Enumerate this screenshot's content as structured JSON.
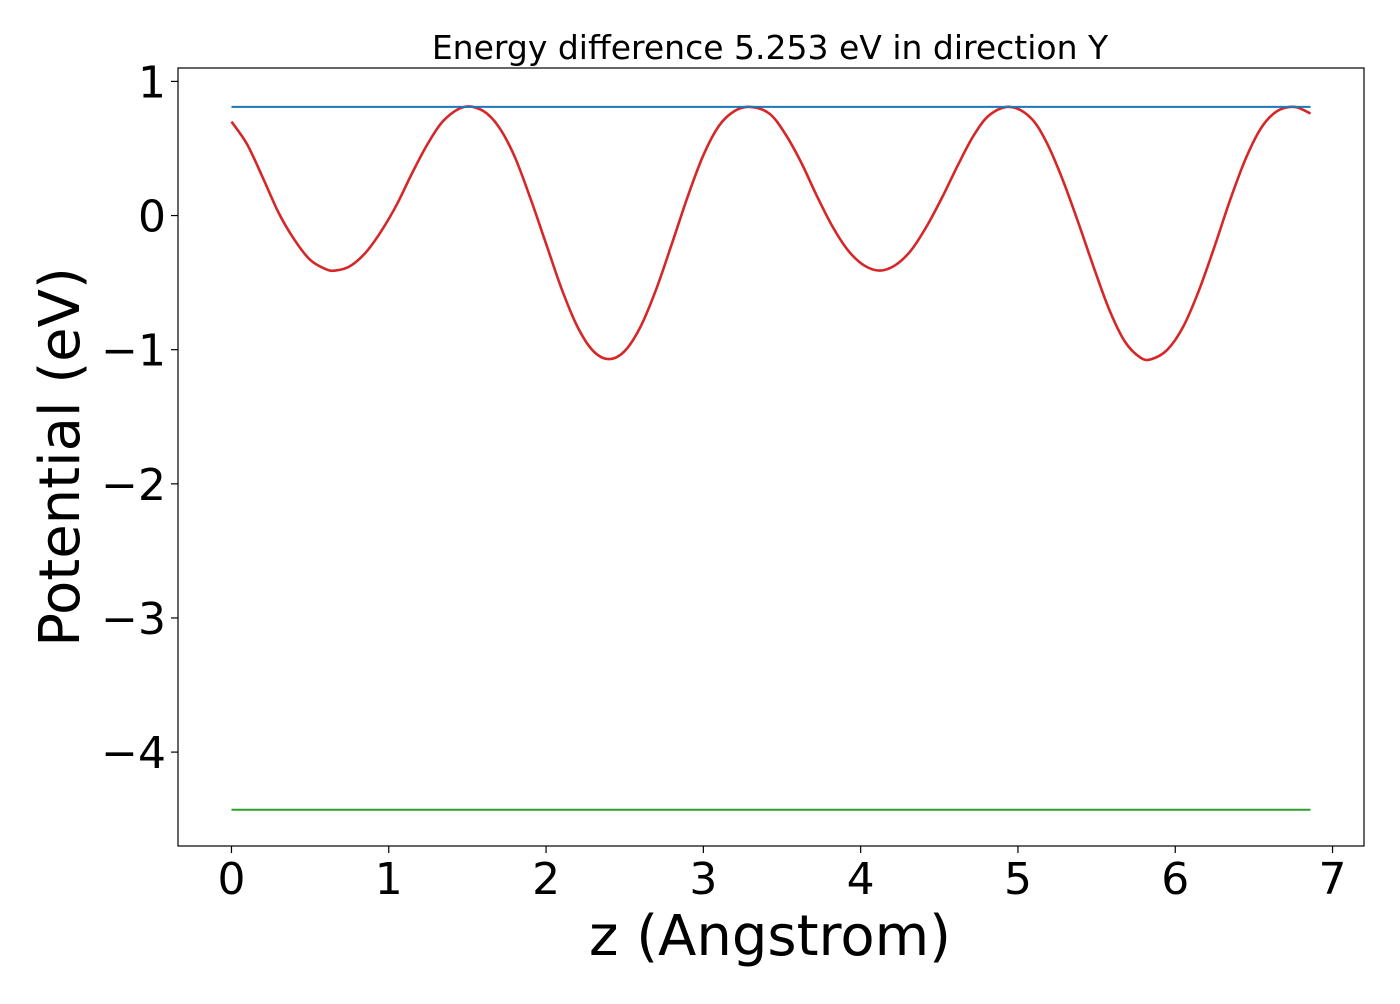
{
  "chart_data": {
    "type": "line",
    "title": "Energy difference 5.253 eV in direction Y",
    "xlabel": "z (Angstrom)",
    "ylabel": "Potential (eV)",
    "xlim": [
      -0.34,
      7.2
    ],
    "ylim": [
      -4.7,
      1.1
    ],
    "xticks": [
      0,
      1,
      2,
      3,
      4,
      5,
      6,
      7
    ],
    "xtick_labels": [
      "0",
      "1",
      "2",
      "3",
      "4",
      "5",
      "6",
      "7"
    ],
    "yticks": [
      1,
      0,
      -1,
      -2,
      -3,
      -4
    ],
    "ytick_labels": [
      "1",
      "0",
      "−1",
      "−2",
      "−3",
      "−4"
    ],
    "grid": false,
    "legend": false,
    "series": [
      {
        "color": "#d62728",
        "style": "curve",
        "x": [
          0.0,
          0.1,
          0.2,
          0.3,
          0.4,
          0.5,
          0.6,
          0.66,
          0.75,
          0.85,
          0.95,
          1.05,
          1.15,
          1.25,
          1.35,
          1.48,
          1.6,
          1.7,
          1.8,
          1.9,
          2.0,
          2.1,
          2.2,
          2.3,
          2.4,
          2.5,
          2.6,
          2.7,
          2.8,
          2.9,
          3.0,
          3.1,
          3.2,
          3.3,
          3.42,
          3.52,
          3.62,
          3.72,
          3.82,
          3.92,
          4.02,
          4.12,
          4.22,
          4.32,
          4.42,
          4.52,
          4.62,
          4.72,
          4.82,
          4.95,
          5.08,
          5.18,
          5.28,
          5.38,
          5.48,
          5.58,
          5.68,
          5.78,
          5.85,
          5.95,
          6.05,
          6.15,
          6.25,
          6.35,
          6.45,
          6.55,
          6.65,
          6.76,
          6.86
        ],
        "y": [
          0.7,
          0.53,
          0.28,
          0.02,
          -0.18,
          -0.33,
          -0.4,
          -0.41,
          -0.38,
          -0.28,
          -0.12,
          0.08,
          0.32,
          0.54,
          0.71,
          0.81,
          0.78,
          0.66,
          0.44,
          0.13,
          -0.21,
          -0.55,
          -0.83,
          -1.01,
          -1.07,
          -1.01,
          -0.83,
          -0.55,
          -0.21,
          0.14,
          0.45,
          0.67,
          0.78,
          0.81,
          0.76,
          0.61,
          0.4,
          0.15,
          -0.08,
          -0.26,
          -0.37,
          -0.41,
          -0.37,
          -0.26,
          -0.08,
          0.14,
          0.38,
          0.6,
          0.75,
          0.81,
          0.73,
          0.55,
          0.28,
          -0.04,
          -0.38,
          -0.7,
          -0.94,
          -1.06,
          -1.07,
          -1.0,
          -0.83,
          -0.56,
          -0.23,
          0.12,
          0.43,
          0.66,
          0.78,
          0.81,
          0.76
        ]
      },
      {
        "color": "#1f77b4",
        "style": "flat",
        "x": [
          0,
          6.86
        ],
        "y": [
          0.81,
          0.81
        ]
      },
      {
        "color": "#2ca02c",
        "style": "flat",
        "x": [
          0,
          6.86
        ],
        "y": [
          -4.43,
          -4.43
        ]
      }
    ]
  }
}
